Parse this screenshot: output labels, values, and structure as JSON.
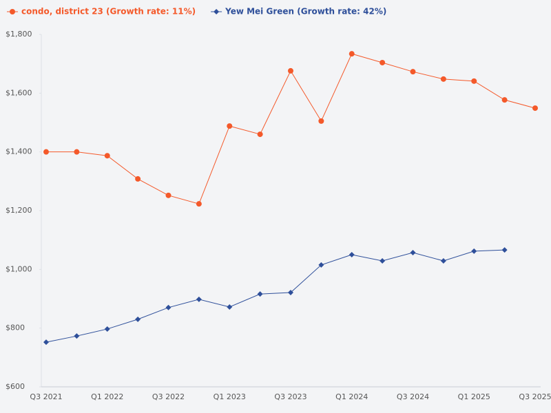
{
  "chart_data": {
    "type": "line",
    "categories": [
      "Q3 2021",
      null,
      "Q1 2022",
      null,
      "Q3 2022",
      null,
      "Q1 2023",
      null,
      "Q3 2023",
      null,
      "Q1 2024",
      null,
      "Q3 2024",
      null,
      "Q1 2025",
      null,
      "Q3 2025"
    ],
    "series": [
      {
        "name": "condo, district 23 (Growth rate: 11%)",
        "color": "#f4592a",
        "marker": "circle",
        "values": [
          1400,
          1400,
          1387,
          1308,
          1252,
          1223,
          1488,
          1460,
          1676,
          1505,
          1734,
          1704,
          1673,
          1648,
          1641,
          1577,
          1549
        ]
      },
      {
        "name": "Yew Mei Green (Growth rate: 42%)",
        "color": "#2e4f9a",
        "marker": "diamond",
        "values": [
          752,
          773,
          797,
          830,
          870,
          898,
          872,
          916,
          921,
          1015,
          1050,
          1029,
          1057,
          1029,
          1062,
          1066,
          null
        ]
      }
    ],
    "ylim": [
      600,
      1800
    ],
    "yticks": [
      {
        "value": 600,
        "label": "$600"
      },
      {
        "value": 800,
        "label": "$800"
      },
      {
        "value": 1000,
        "label": "$1,000"
      },
      {
        "value": 1200,
        "label": "$1,200"
      },
      {
        "value": 1400,
        "label": "$1,400"
      },
      {
        "value": 1600,
        "label": "$1,600"
      },
      {
        "value": 1800,
        "label": "$1,800"
      }
    ],
    "legend": "top-left"
  }
}
